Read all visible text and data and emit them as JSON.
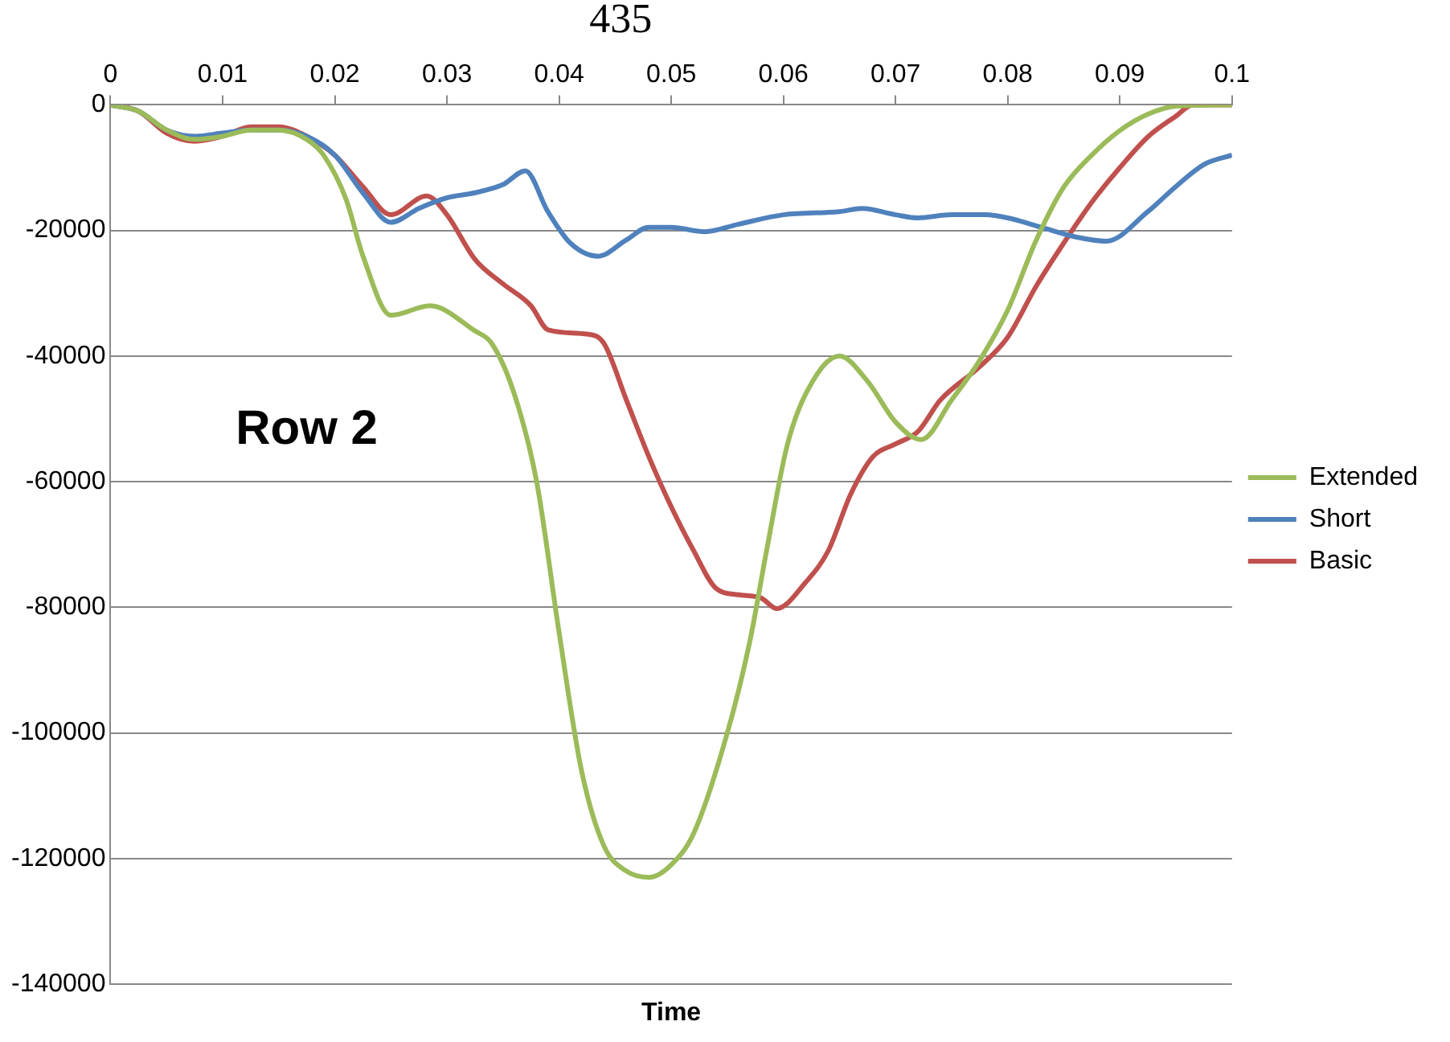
{
  "chart_data": {
    "type": "line",
    "xlabel": "Time",
    "annotations": [
      "Row 2",
      "435"
    ],
    "xlim": [
      0,
      0.1
    ],
    "xticks": [
      0,
      0.01,
      0.02,
      0.03,
      0.04,
      0.05,
      0.06,
      0.07,
      0.08,
      0.09,
      0.1
    ],
    "ylim": [
      -140000,
      0
    ],
    "yticks": [
      0,
      -20000,
      -40000,
      -60000,
      -80000,
      -100000,
      -120000,
      -140000
    ],
    "grid": "y",
    "legend": "right",
    "marker": "none",
    "line_style": "solid",
    "series": [
      {
        "name": "Extended",
        "color": "#9bbb59",
        "x": [
          0,
          0.0025,
          0.005,
          0.0075,
          0.01,
          0.0125,
          0.015,
          0.0175,
          0.019,
          0.021,
          0.0225,
          0.025,
          0.0285,
          0.0325,
          0.034,
          0.036,
          0.038,
          0.04,
          0.042,
          0.044,
          0.046,
          0.048,
          0.05,
          0.052,
          0.055,
          0.057,
          0.0585,
          0.0603,
          0.062,
          0.065,
          0.0675,
          0.07,
          0.0723,
          0.075,
          0.0775,
          0.08,
          0.0825,
          0.085,
          0.0875,
          0.09,
          0.0925,
          0.095,
          0.1
        ],
        "values": [
          0,
          -1000,
          -4000,
          -5500,
          -5000,
          -4000,
          -4000,
          -5500,
          -8000,
          -15000,
          -24000,
          -33500,
          -32000,
          -36000,
          -38000,
          -46000,
          -60000,
          -84000,
          -106000,
          -118000,
          -122000,
          -123000,
          -121000,
          -116000,
          -100000,
          -85500,
          -71000,
          -54500,
          -46000,
          -40000,
          -44000,
          -50500,
          -53300,
          -47000,
          -40700,
          -32700,
          -21700,
          -13100,
          -8000,
          -4100,
          -1500,
          -200,
          0
        ]
      },
      {
        "name": "Short",
        "color": "#4f81bd",
        "x": [
          0,
          0.0025,
          0.005,
          0.0075,
          0.01,
          0.0125,
          0.015,
          0.0175,
          0.02,
          0.0225,
          0.025,
          0.0275,
          0.03,
          0.0325,
          0.035,
          0.037,
          0.039,
          0.041,
          0.0435,
          0.046,
          0.048,
          0.05,
          0.053,
          0.056,
          0.06,
          0.065,
          0.067,
          0.07,
          0.072,
          0.075,
          0.078,
          0.08,
          0.083,
          0.086,
          0.0888,
          0.0925,
          0.095,
          0.0975,
          0.1
        ],
        "values": [
          0,
          -1000,
          -4000,
          -5000,
          -4500,
          -4000,
          -4000,
          -5000,
          -8000,
          -14000,
          -18700,
          -16500,
          -14800,
          -14000,
          -12700,
          -10500,
          -17000,
          -22000,
          -24100,
          -21500,
          -19500,
          -19500,
          -20200,
          -19000,
          -17500,
          -17000,
          -16500,
          -17500,
          -18000,
          -17500,
          -17500,
          -18000,
          -19500,
          -21000,
          -21700,
          -17000,
          -13000,
          -9500,
          -8000
        ]
      },
      {
        "name": "Basic",
        "color": "#c0504d",
        "x": [
          0,
          0.0025,
          0.005,
          0.0075,
          0.01,
          0.0125,
          0.015,
          0.0175,
          0.02,
          0.0225,
          0.025,
          0.0282,
          0.03,
          0.0325,
          0.035,
          0.0375,
          0.039,
          0.0425,
          0.044,
          0.046,
          0.048,
          0.05,
          0.052,
          0.054,
          0.056,
          0.058,
          0.0594,
          0.062,
          0.064,
          0.066,
          0.068,
          0.07,
          0.072,
          0.074,
          0.0775,
          0.08,
          0.0825,
          0.085,
          0.0875,
          0.09,
          0.0925,
          0.095,
          0.0965,
          0.1
        ],
        "values": [
          0,
          -1000,
          -4500,
          -5800,
          -5000,
          -3500,
          -3500,
          -5000,
          -8000,
          -13000,
          -17500,
          -14500,
          -17500,
          -24600,
          -28500,
          -32000,
          -35800,
          -36500,
          -38000,
          -47000,
          -56000,
          -64000,
          -71000,
          -77000,
          -78000,
          -78500,
          -80200,
          -76000,
          -71000,
          -62000,
          -56000,
          -54000,
          -52000,
          -47000,
          -41700,
          -37000,
          -29000,
          -22000,
          -15500,
          -10000,
          -5100,
          -1800,
          0,
          0
        ]
      }
    ]
  }
}
